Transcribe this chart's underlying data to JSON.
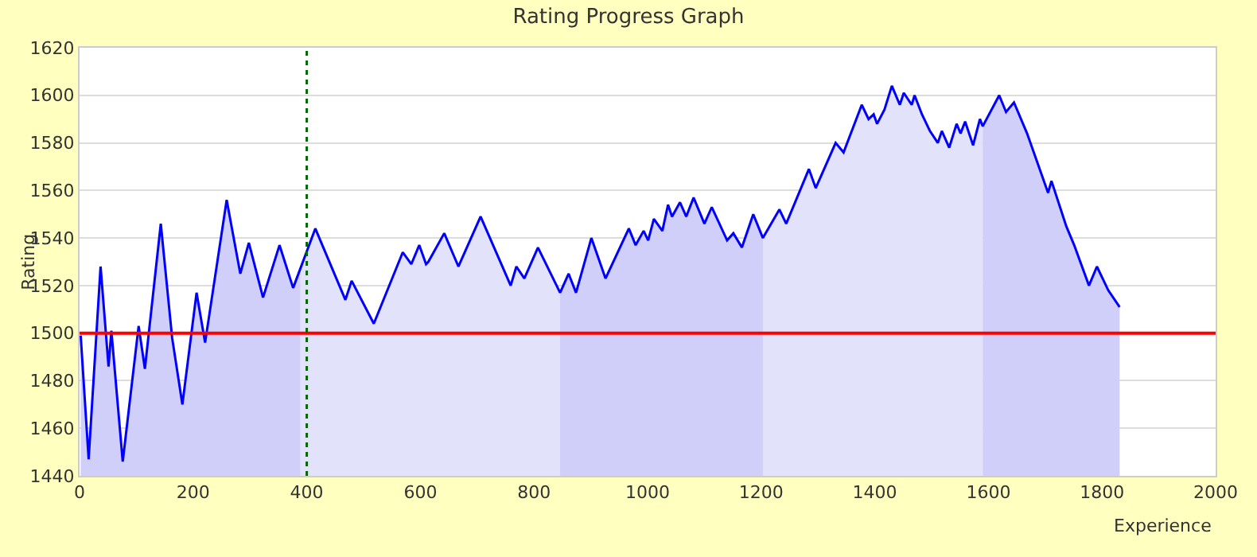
{
  "chart_data": {
    "type": "line",
    "title": "Rating Progress Graph",
    "xlabel": "Experience",
    "ylabel": "Rating",
    "xlim": [
      0,
      2000
    ],
    "xticks": [
      0,
      200,
      400,
      600,
      800,
      1000,
      1200,
      1400,
      1600,
      1800,
      2000
    ],
    "ylim": [
      1440,
      1620
    ],
    "yticks": [
      1440,
      1460,
      1480,
      1500,
      1520,
      1540,
      1560,
      1580,
      1600,
      1620
    ],
    "grid": "y",
    "ref_lines": [
      {
        "axis": "y",
        "value": 1500,
        "color": "#ff0000",
        "line_style": "solid"
      },
      {
        "axis": "x",
        "value": 400,
        "color": "#006600",
        "line_style": "dotted"
      }
    ],
    "series": [
      {
        "type": "area",
        "color": "#cfcff9",
        "x": [
          2,
          16,
          37,
          51,
          56,
          76,
          104,
          115,
          143,
          163,
          181,
          206,
          221,
          259,
          283,
          298,
          323,
          352,
          376,
          389
        ],
        "values": [
          1499,
          1447,
          1528,
          1486,
          1501,
          1446,
          1503,
          1485,
          1546,
          1498,
          1470,
          1517,
          1496,
          1556,
          1525,
          1538,
          1515,
          1537,
          1519,
          1527
        ]
      },
      {
        "type": "area",
        "color": "#e2e2fa",
        "x": [
          389,
          415,
          468,
          479,
          518,
          569,
          584,
          598,
          610,
          614,
          642,
          667,
          706,
          759,
          769,
          783,
          807,
          846
        ],
        "values": [
          1527,
          1544,
          1514,
          1522,
          1504,
          1534,
          1529,
          1537,
          1529,
          1530,
          1542,
          1528,
          1549,
          1520,
          1528,
          1523,
          1536,
          1517
        ]
      },
      {
        "type": "area",
        "color": "#cfcff9",
        "x": [
          846,
          861,
          874,
          901,
          926,
          967,
          979,
          993,
          1001,
          1011,
          1026,
          1036,
          1043,
          1057,
          1068,
          1081,
          1100,
          1113,
          1140,
          1151,
          1166,
          1186,
          1203
        ],
        "values": [
          1517,
          1525,
          1517,
          1540,
          1523,
          1544,
          1537,
          1543,
          1539,
          1548,
          1543,
          1554,
          1549,
          1555,
          1549,
          1557,
          1546,
          1553,
          1539,
          1542,
          1536,
          1550,
          1540
        ]
      },
      {
        "type": "area",
        "color": "#e2e2fa",
        "x": [
          1203,
          1232,
          1244,
          1284,
          1296,
          1331,
          1345,
          1377,
          1389,
          1398,
          1404,
          1417,
          1430,
          1444,
          1451,
          1465,
          1470,
          1483,
          1497,
          1511,
          1518,
          1531,
          1544,
          1551,
          1559,
          1573,
          1585,
          1590
        ],
        "values": [
          1540,
          1552,
          1546,
          1569,
          1561,
          1580,
          1576,
          1596,
          1590,
          1592,
          1588,
          1594,
          1604,
          1596,
          1601,
          1596,
          1600,
          1592,
          1585,
          1580,
          1585,
          1578,
          1588,
          1584,
          1589,
          1579,
          1590,
          1587
        ]
      },
      {
        "type": "area",
        "color": "#cfcff9",
        "x": [
          1590,
          1619,
          1631,
          1645,
          1668,
          1705,
          1711,
          1737,
          1751,
          1777,
          1791,
          1811,
          1831
        ],
        "values": [
          1587,
          1600,
          1593,
          1597,
          1584,
          1559,
          1564,
          1545,
          1537,
          1520,
          1528,
          1518,
          1511
        ]
      },
      {
        "color": "#0000ff",
        "x": [
          2,
          16,
          37,
          51,
          56,
          76,
          104,
          115,
          143,
          163,
          181,
          206,
          221,
          259,
          283,
          298,
          323,
          352,
          376,
          415,
          468,
          479,
          518,
          569,
          584,
          598,
          610,
          614,
          642,
          667,
          706,
          759,
          769,
          783,
          807,
          846,
          861,
          874,
          901,
          926,
          967,
          979,
          993,
          1001,
          1011,
          1026,
          1036,
          1043,
          1057,
          1068,
          1081,
          1100,
          1113,
          1140,
          1151,
          1166,
          1186,
          1203,
          1232,
          1244,
          1284,
          1296,
          1331,
          1345,
          1377,
          1389,
          1398,
          1404,
          1417,
          1430,
          1444,
          1451,
          1465,
          1470,
          1483,
          1497,
          1511,
          1518,
          1531,
          1544,
          1551,
          1559,
          1573,
          1585,
          1590,
          1619,
          1631,
          1645,
          1668,
          1705,
          1711,
          1737,
          1751,
          1777,
          1791,
          1811,
          1831
        ],
        "values": [
          1499,
          1447,
          1528,
          1486,
          1501,
          1446,
          1503,
          1485,
          1546,
          1498,
          1470,
          1517,
          1496,
          1556,
          1525,
          1538,
          1515,
          1537,
          1519,
          1544,
          1514,
          1522,
          1504,
          1534,
          1529,
          1537,
          1529,
          1530,
          1542,
          1528,
          1549,
          1520,
          1528,
          1523,
          1536,
          1517,
          1525,
          1517,
          1540,
          1523,
          1544,
          1537,
          1543,
          1539,
          1548,
          1543,
          1554,
          1549,
          1555,
          1549,
          1557,
          1546,
          1553,
          1539,
          1542,
          1536,
          1550,
          1540,
          1552,
          1546,
          1569,
          1561,
          1580,
          1576,
          1596,
          1590,
          1592,
          1588,
          1594,
          1604,
          1596,
          1601,
          1596,
          1600,
          1592,
          1585,
          1580,
          1585,
          1578,
          1588,
          1584,
          1589,
          1579,
          1590,
          1587,
          1600,
          1593,
          1597,
          1584,
          1559,
          1564,
          1545,
          1537,
          1520,
          1528,
          1518,
          1511
        ]
      }
    ]
  }
}
